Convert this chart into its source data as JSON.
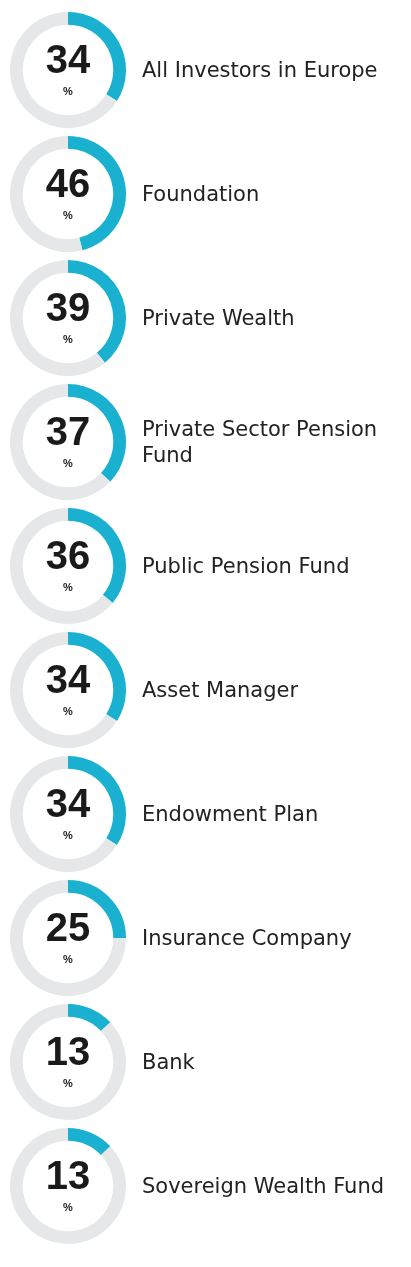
{
  "chart_data": [
    {
      "type": "donut",
      "title": "All Investors in Europe",
      "categories": [
        null,
        null
      ],
      "values": [
        34,
        66
      ],
      "colors": [
        "#1ab0d0",
        "#e6e7e9"
      ],
      "value_labels": [
        "34",
        null
      ],
      "annotations": [
        "%"
      ]
    },
    {
      "type": "donut",
      "title": "Foundation",
      "categories": [
        null,
        null
      ],
      "values": [
        46,
        54
      ],
      "colors": [
        "#1ab0d0",
        "#e6e7e9"
      ],
      "value_labels": [
        "46",
        null
      ],
      "annotations": [
        "%"
      ]
    },
    {
      "type": "donut",
      "title": "Private Wealth",
      "categories": [
        null,
        null
      ],
      "values": [
        39,
        61
      ],
      "colors": [
        "#1ab0d0",
        "#e6e7e9"
      ],
      "value_labels": [
        "39",
        null
      ],
      "annotations": [
        "%"
      ]
    },
    {
      "type": "donut",
      "title": "Private Sector Pension Fund",
      "categories": [
        null,
        null
      ],
      "values": [
        37,
        63
      ],
      "colors": [
        "#1ab0d0",
        "#e6e7e9"
      ],
      "value_labels": [
        "37",
        null
      ],
      "annotations": [
        "%"
      ]
    },
    {
      "type": "donut",
      "title": "Public Pension Fund",
      "categories": [
        null,
        null
      ],
      "values": [
        36,
        64
      ],
      "colors": [
        "#1ab0d0",
        "#e6e7e9"
      ],
      "value_labels": [
        "36",
        null
      ],
      "annotations": [
        "%"
      ]
    },
    {
      "type": "donut",
      "title": "Asset Manager",
      "categories": [
        null,
        null
      ],
      "values": [
        34,
        66
      ],
      "colors": [
        "#1ab0d0",
        "#e6e7e9"
      ],
      "value_labels": [
        "34",
        null
      ],
      "annotations": [
        "%"
      ]
    },
    {
      "type": "donut",
      "title": "Endowment Plan",
      "categories": [
        null,
        null
      ],
      "values": [
        34,
        66
      ],
      "colors": [
        "#1ab0d0",
        "#e6e7e9"
      ],
      "value_labels": [
        "34",
        null
      ],
      "annotations": [
        "%"
      ]
    },
    {
      "type": "donut",
      "title": "Insurance Company",
      "categories": [
        null,
        null
      ],
      "values": [
        25,
        75
      ],
      "colors": [
        "#1ab0d0",
        "#e6e7e9"
      ],
      "value_labels": [
        "25",
        null
      ],
      "annotations": [
        "%"
      ]
    },
    {
      "type": "donut",
      "title": "Bank",
      "categories": [
        null,
        null
      ],
      "values": [
        13,
        87
      ],
      "colors": [
        "#1ab0d0",
        "#e6e7e9"
      ],
      "value_labels": [
        "13",
        null
      ],
      "annotations": [
        "%"
      ]
    },
    {
      "type": "donut",
      "title": "Sovereign Wealth Fund",
      "categories": [
        null,
        null
      ],
      "values": [
        13,
        87
      ],
      "colors": [
        "#1ab0d0",
        "#e6e7e9"
      ],
      "value_labels": [
        "13",
        null
      ],
      "annotations": [
        "%"
      ]
    }
  ]
}
